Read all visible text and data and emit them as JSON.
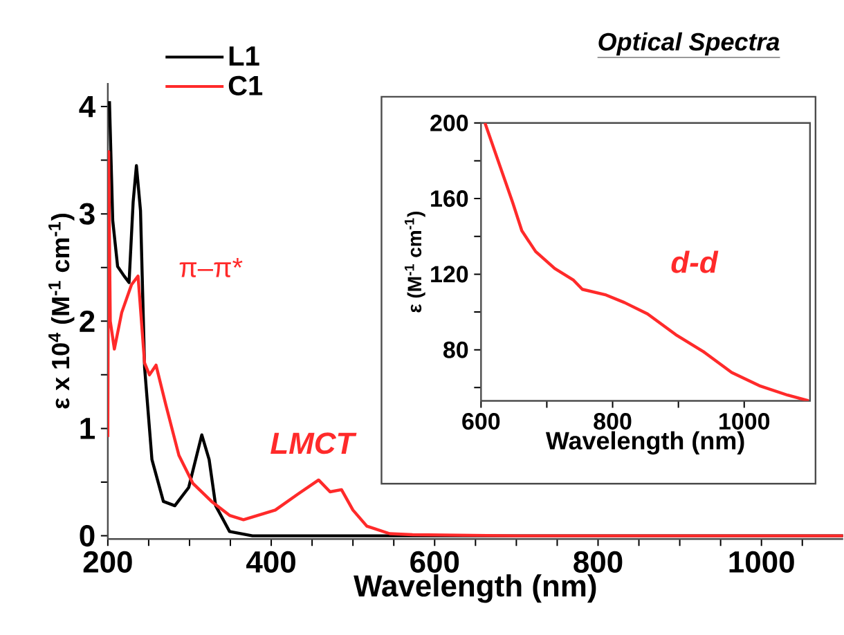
{
  "chart_data": [
    {
      "type": "line",
      "title": "Optical Spectra",
      "xlabel": "Wavelength (nm)",
      "ylabel": "ε x 10$^{4}$ (M$^{-1}$ cm$^{-1}$)",
      "xlim": [
        200,
        1100
      ],
      "ylim": [
        -0.03,
        4.22
      ],
      "xticks": [
        200,
        {
          "value": 250,
          "label": null
        },
        {
          "value": 300,
          "label": null
        },
        {
          "value": 350,
          "label": null
        },
        400,
        {
          "value": 450,
          "label": null
        },
        {
          "value": 500,
          "label": null
        },
        {
          "value": 550,
          "label": null
        },
        600,
        {
          "value": 650,
          "label": null
        },
        {
          "value": 700,
          "label": null
        },
        {
          "value": 750,
          "label": null
        },
        800,
        {
          "value": 850,
          "label": null
        },
        {
          "value": 900,
          "label": null
        },
        {
          "value": 950,
          "label": null
        },
        1000,
        {
          "value": 1050,
          "label": null
        }
      ],
      "yticks": [
        0,
        {
          "value": 0.5,
          "label": null
        },
        1,
        {
          "value": 1.5,
          "label": null
        },
        2,
        {
          "value": 2.5,
          "label": null
        },
        3,
        {
          "value": 3.5,
          "label": null
        },
        4
      ],
      "legend": "top left",
      "series": [
        {
          "name": "L1",
          "color": "#000000",
          "x": [
            202,
            206,
            212,
            220,
            226,
            231,
            235,
            240,
            245,
            254,
            268,
            282,
            299,
            315,
            324,
            332,
            349,
            377,
            600,
            1100
          ],
          "values": [
            4.05,
            2.94,
            2.51,
            2.42,
            2.36,
            3.11,
            3.45,
            3.03,
            1.57,
            0.71,
            0.32,
            0.28,
            0.45,
            0.94,
            0.71,
            0.28,
            0.04,
            0,
            0,
            0
          ]
        },
        {
          "name": "C1",
          "color": "#ff2a2a",
          "x": [
            200,
            201,
            203,
            208,
            217,
            229,
            237,
            245,
            251,
            259,
            271,
            287,
            304,
            327,
            349,
            366,
            405,
            433,
            458,
            472,
            486,
            500,
            517,
            545,
            573,
            700,
            1100
          ],
          "values": [
            0.92,
            3.58,
            2.0,
            1.74,
            2.08,
            2.34,
            2.42,
            1.61,
            1.5,
            1.59,
            1.22,
            0.75,
            0.49,
            0.32,
            0.19,
            0.15,
            0.24,
            0.39,
            0.52,
            0.41,
            0.43,
            0.24,
            0.09,
            0.02,
            0.01,
            0,
            0
          ]
        }
      ],
      "annotations": [
        "π–π*",
        "LMCT"
      ]
    },
    {
      "type": "line",
      "xlabel": "Wavelength (nm)",
      "ylabel": "ε (M$^{-1}$ cm$^{-1}$)",
      "xlim": [
        600,
        1100
      ],
      "ylim": [
        53,
        200
      ],
      "xticks": [
        600,
        {
          "value": 700,
          "label": null
        },
        800,
        {
          "value": 900,
          "label": null
        },
        1000
      ],
      "yticks": [
        {
          "value": 60,
          "label": null
        },
        80,
        {
          "value": 100,
          "label": null
        },
        120,
        {
          "value": 140,
          "label": null
        },
        160,
        {
          "value": 180,
          "label": null
        },
        200
      ],
      "series": [
        {
          "color": "#ff2a2a",
          "x": [
            606,
            626,
            648,
            662,
            683,
            712,
            740,
            754,
            790,
            818,
            853,
            896,
            938,
            981,
            1023,
            1066,
            1098
          ],
          "values": [
            200,
            180,
            158,
            143,
            132,
            123,
            117,
            112,
            109,
            105,
            99,
            88,
            79,
            68,
            61,
            56,
            53
          ]
        }
      ],
      "annotations": [
        "d-d"
      ]
    }
  ]
}
